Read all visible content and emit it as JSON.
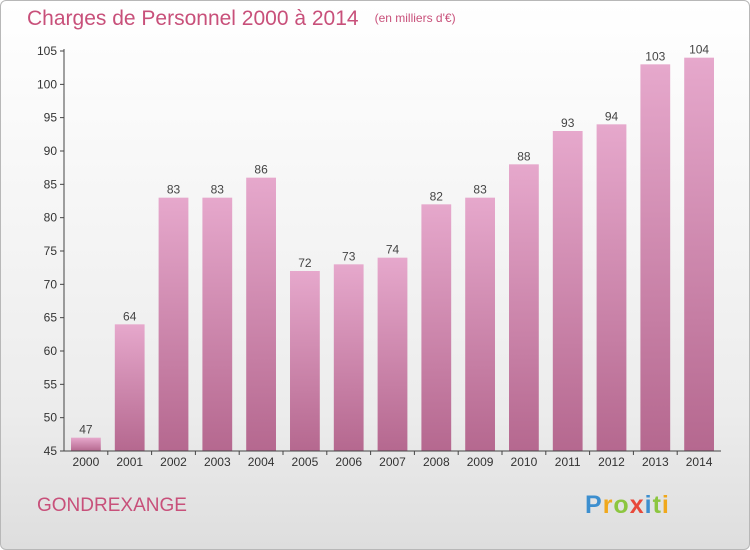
{
  "header": {
    "title": "Charges de Personnel 2000 à 2014",
    "subtitle": "(en milliers d'€)"
  },
  "footer": {
    "commune": "GONDREXANGE"
  },
  "logo": {
    "letters": [
      {
        "char": "P",
        "color": "#3d8fcf"
      },
      {
        "char": "r",
        "color": "#f0a81c"
      },
      {
        "char": "o",
        "color": "#8cc63f"
      },
      {
        "char": "x",
        "color": "#e8493a"
      },
      {
        "char": "i",
        "color": "#3d8fcf"
      },
      {
        "char": "t",
        "color": "#8cc63f"
      },
      {
        "char": "i",
        "color": "#f0a81c"
      }
    ]
  },
  "chart_data": {
    "type": "bar",
    "categories": [
      "2000",
      "2001",
      "2002",
      "2003",
      "2004",
      "2005",
      "2006",
      "2007",
      "2008",
      "2009",
      "2010",
      "2011",
      "2012",
      "2013",
      "2014"
    ],
    "values": [
      47,
      64,
      83,
      83,
      86,
      72,
      73,
      74,
      82,
      83,
      88,
      93,
      94,
      103,
      104
    ],
    "ylim": [
      45,
      105
    ],
    "yticks": [
      45,
      50,
      55,
      60,
      65,
      70,
      75,
      80,
      85,
      90,
      95,
      100,
      105
    ],
    "grid": false,
    "colors": {
      "bar_light": "#e6a8cc",
      "bar_dark": "#b5688f",
      "axis": "#444444",
      "text": "#333333",
      "label": "#444444"
    }
  }
}
